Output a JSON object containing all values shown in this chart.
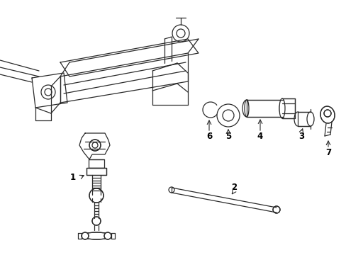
{
  "background_color": "#ffffff",
  "line_color": "#2a2a2a",
  "label_color": "#000000",
  "figsize": [
    4.89,
    3.6
  ],
  "dpi": 100
}
